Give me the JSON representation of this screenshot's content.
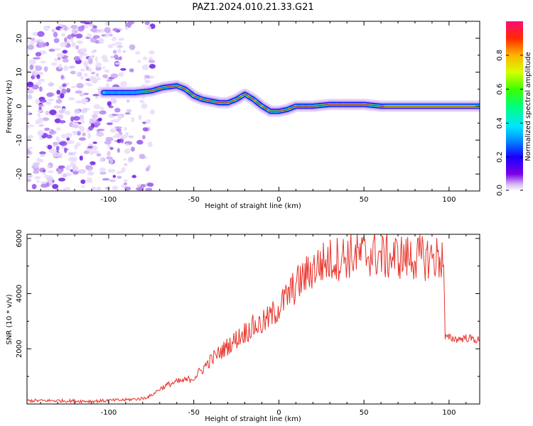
{
  "title": "PAZ1.2024.010.21.33.G21",
  "chart_data": [
    {
      "type": "heatmap",
      "xlabel": "Height of straight line (km)",
      "ylabel": "Frequency (Hz)",
      "xlim": [
        -148,
        118
      ],
      "ylim": [
        -25,
        25
      ],
      "xticks": [
        -100,
        -50,
        0,
        50,
        100
      ],
      "yticks": [
        -20,
        -10,
        0,
        10,
        20
      ],
      "colorbar": {
        "label": "Normalized spectral amplitude",
        "range": [
          0,
          1
        ],
        "ticks": [
          "0.0",
          "0.2",
          "0.4",
          "0.6",
          "0.8"
        ]
      },
      "ridge": {
        "x": [
          -103,
          -95,
          -85,
          -75,
          -68,
          -60,
          -55,
          -50,
          -45,
          -40,
          -35,
          -30,
          -25,
          -20,
          -15,
          -10,
          -5,
          0,
          5,
          10,
          20,
          30,
          40,
          50,
          60,
          80,
          100,
          118
        ],
        "y": [
          4,
          4,
          4,
          4.5,
          5.5,
          6,
          5,
          3,
          2,
          1.5,
          1,
          1,
          2,
          3.5,
          2,
          0,
          -1.5,
          -1.5,
          -1,
          0,
          0,
          0.5,
          0.5,
          0.5,
          0,
          0,
          0,
          0
        ]
      },
      "noise_region_x": [
        -148,
        -80
      ]
    },
    {
      "type": "line",
      "xlabel": "Height of straight line (km)",
      "ylabel": "SNR (10 * v/v)",
      "xlim": [
        -148,
        118
      ],
      "ylim": [
        0,
        6150
      ],
      "xticks": [
        -100,
        -50,
        0,
        50,
        100
      ],
      "yticks": [
        2000,
        4000,
        6000
      ],
      "series": [
        {
          "color": "#e8322a",
          "x": [
            -148,
            -130,
            -110,
            -90,
            -80,
            -75,
            -70,
            -65,
            -60,
            -55,
            -50,
            -45,
            -40,
            -35,
            -30,
            -25,
            -20,
            -15,
            -10,
            -5,
            0,
            5,
            10,
            15,
            20,
            25,
            30,
            35,
            40,
            45,
            50,
            55,
            60,
            65,
            70,
            75,
            80,
            85,
            90,
            95,
            97,
            97.5,
            100,
            105,
            110,
            118
          ],
          "y": [
            120,
            120,
            100,
            150,
            200,
            300,
            550,
            700,
            800,
            850,
            950,
            1250,
            1600,
            1850,
            2100,
            2350,
            2600,
            2800,
            2900,
            3150,
            3500,
            3900,
            4300,
            4600,
            4900,
            5100,
            5200,
            5300,
            5350,
            5400,
            5400,
            5450,
            5350,
            5300,
            5350,
            5300,
            5300,
            5300,
            5300,
            5300,
            5300,
            2400,
            2400,
            2350,
            2400,
            2300
          ]
        }
      ]
    }
  ]
}
